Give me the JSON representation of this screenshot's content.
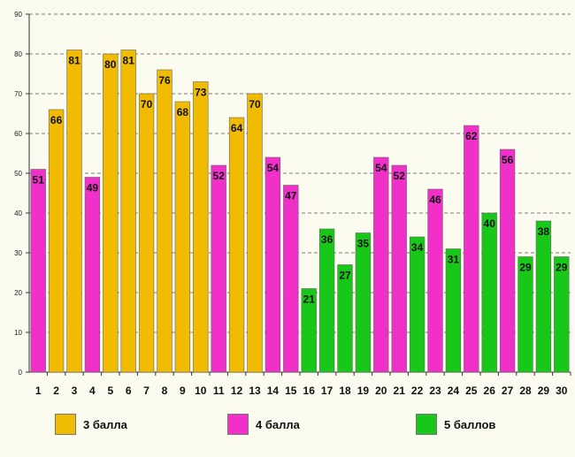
{
  "chart_data": {
    "type": "bar",
    "title": "",
    "xlabel": "",
    "ylabel": "",
    "ylim": [
      0,
      90
    ],
    "yticks": [
      0,
      10,
      20,
      30,
      40,
      50,
      60,
      70,
      80,
      90
    ],
    "grid": true,
    "categories": [
      "1",
      "2",
      "3",
      "4",
      "5",
      "6",
      "7",
      "8",
      "9",
      "10",
      "11",
      "12",
      "13",
      "14",
      "15",
      "16",
      "17",
      "18",
      "19",
      "20",
      "21",
      "22",
      "23",
      "24",
      "25",
      "26",
      "27",
      "28",
      "29",
      "30"
    ],
    "values": [
      51,
      66,
      81,
      49,
      80,
      81,
      70,
      76,
      68,
      73,
      52,
      64,
      70,
      54,
      47,
      21,
      36,
      27,
      35,
      54,
      52,
      34,
      46,
      31,
      62,
      40,
      56,
      29,
      38,
      29
    ],
    "groups": [
      "4",
      "3",
      "3",
      "4",
      "3",
      "3",
      "3",
      "3",
      "3",
      "3",
      "4",
      "3",
      "3",
      "4",
      "4",
      "5",
      "5",
      "5",
      "5",
      "4",
      "4",
      "5",
      "4",
      "5",
      "4",
      "5",
      "4",
      "5",
      "5",
      "5"
    ],
    "legend_position": "bottom",
    "legend": [
      {
        "key": "3",
        "label": "3 балла",
        "color": "#f0bb00"
      },
      {
        "key": "4",
        "label": "4 балла",
        "color": "#f030c8"
      },
      {
        "key": "5",
        "label": "5 баллов",
        "color": "#18c818"
      }
    ]
  }
}
